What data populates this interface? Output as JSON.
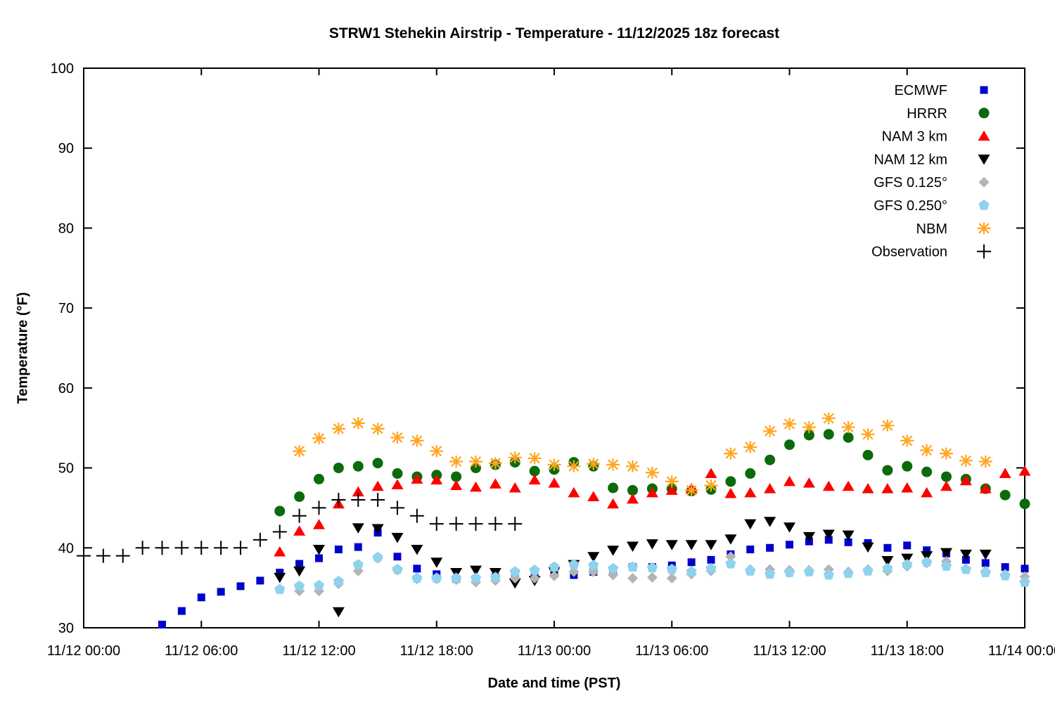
{
  "chart_data": {
    "type": "scatter",
    "title": "STRW1 Stehekin Airstrip - Temperature - 11/12/2025 18z forecast",
    "xlabel": "Date and time (PST)",
    "ylabel": "Temperature (°F)",
    "x_unit": "hours since 11/12 00:00 PST",
    "xlim_hours": [
      0,
      48
    ],
    "ylim": [
      30,
      100
    ],
    "grid": false,
    "legend_position": "top-right-inside",
    "x_ticks": [
      {
        "hour": 0,
        "label": "11/12 00:00"
      },
      {
        "hour": 6,
        "label": "11/12 06:00"
      },
      {
        "hour": 12,
        "label": "11/12 12:00"
      },
      {
        "hour": 18,
        "label": "11/12 18:00"
      },
      {
        "hour": 24,
        "label": "11/13 00:00"
      },
      {
        "hour": 30,
        "label": "11/13 06:00"
      },
      {
        "hour": 36,
        "label": "11/13 12:00"
      },
      {
        "hour": 42,
        "label": "11/13 18:00"
      },
      {
        "hour": 48,
        "label": "11/14 00:00"
      }
    ],
    "y_ticks": [
      30,
      40,
      50,
      60,
      70,
      80,
      90,
      100
    ],
    "series": [
      {
        "name": "ECMWF",
        "marker": "square",
        "color": "#0000cd",
        "points": [
          [
            4,
            30.4
          ],
          [
            5,
            32.1
          ],
          [
            6,
            33.8
          ],
          [
            7,
            34.5
          ],
          [
            8,
            35.2
          ],
          [
            9,
            35.9
          ],
          [
            10,
            36.9
          ],
          [
            11,
            38.0
          ],
          [
            12,
            38.7
          ],
          [
            13,
            39.8
          ],
          [
            14,
            40.1
          ],
          [
            15,
            41.9
          ],
          [
            16,
            38.9
          ],
          [
            17,
            37.4
          ],
          [
            18,
            36.7
          ],
          [
            19,
            36.1
          ],
          [
            20,
            36.1
          ],
          [
            21,
            36.3
          ],
          [
            22,
            36.5
          ],
          [
            23,
            36.7
          ],
          [
            24,
            36.9
          ],
          [
            25,
            36.6
          ],
          [
            26,
            37.0
          ],
          [
            27,
            37.1
          ],
          [
            28,
            37.6
          ],
          [
            29,
            37.6
          ],
          [
            30,
            37.8
          ],
          [
            31,
            38.2
          ],
          [
            32,
            38.5
          ],
          [
            33,
            39.2
          ],
          [
            34,
            39.8
          ],
          [
            35,
            40.0
          ],
          [
            36,
            40.4
          ],
          [
            37,
            40.8
          ],
          [
            38,
            41.0
          ],
          [
            39,
            40.7
          ],
          [
            40,
            40.6
          ],
          [
            41,
            40.0
          ],
          [
            42,
            40.3
          ],
          [
            43,
            39.7
          ],
          [
            44,
            39.3
          ],
          [
            45,
            38.5
          ],
          [
            46,
            38.1
          ],
          [
            47,
            37.6
          ],
          [
            48,
            37.4
          ]
        ]
      },
      {
        "name": "HRRR",
        "marker": "circle",
        "color": "#0b6b0b",
        "points": [
          [
            10,
            44.6
          ],
          [
            11,
            46.4
          ],
          [
            12,
            48.6
          ],
          [
            13,
            50.0
          ],
          [
            14,
            50.2
          ],
          [
            15,
            50.6
          ],
          [
            16,
            49.3
          ],
          [
            17,
            48.9
          ],
          [
            18,
            49.1
          ],
          [
            19,
            48.9
          ],
          [
            20,
            50.0
          ],
          [
            21,
            50.4
          ],
          [
            22,
            50.7
          ],
          [
            23,
            49.6
          ],
          [
            24,
            49.8
          ],
          [
            25,
            50.7
          ],
          [
            26,
            50.2
          ],
          [
            27,
            47.5
          ],
          [
            28,
            47.2
          ],
          [
            29,
            47.4
          ],
          [
            30,
            47.4
          ],
          [
            31,
            47.1
          ],
          [
            32,
            47.3
          ],
          [
            33,
            48.3
          ],
          [
            34,
            49.3
          ],
          [
            35,
            51.0
          ],
          [
            36,
            52.9
          ],
          [
            37,
            54.1
          ],
          [
            38,
            54.2
          ],
          [
            39,
            53.8
          ],
          [
            40,
            51.6
          ],
          [
            41,
            49.7
          ],
          [
            42,
            50.2
          ],
          [
            43,
            49.5
          ],
          [
            44,
            48.9
          ],
          [
            45,
            48.6
          ],
          [
            46,
            47.4
          ],
          [
            47,
            46.6
          ],
          [
            48,
            45.5
          ]
        ]
      },
      {
        "name": "NAM 3 km",
        "marker": "triangle-up",
        "color": "#fe0000",
        "points": [
          [
            10,
            39.5
          ],
          [
            11,
            42.1
          ],
          [
            12,
            42.9
          ],
          [
            13,
            45.5
          ],
          [
            14,
            47.0
          ],
          [
            15,
            47.7
          ],
          [
            16,
            47.9
          ],
          [
            17,
            48.6
          ],
          [
            18,
            48.5
          ],
          [
            19,
            47.8
          ],
          [
            20,
            47.6
          ],
          [
            21,
            48.0
          ],
          [
            22,
            47.5
          ],
          [
            23,
            48.5
          ],
          [
            24,
            48.1
          ],
          [
            25,
            46.9
          ],
          [
            26,
            46.4
          ],
          [
            27,
            45.5
          ],
          [
            28,
            46.1
          ],
          [
            29,
            46.9
          ],
          [
            30,
            47.2
          ],
          [
            31,
            47.4
          ],
          [
            32,
            49.3
          ],
          [
            33,
            46.8
          ],
          [
            34,
            46.9
          ],
          [
            35,
            47.4
          ],
          [
            36,
            48.3
          ],
          [
            37,
            48.1
          ],
          [
            38,
            47.7
          ],
          [
            39,
            47.7
          ],
          [
            40,
            47.4
          ],
          [
            41,
            47.4
          ],
          [
            42,
            47.5
          ],
          [
            43,
            46.9
          ],
          [
            44,
            47.7
          ],
          [
            45,
            48.4
          ],
          [
            46,
            47.4
          ],
          [
            47,
            49.3
          ],
          [
            48,
            49.6
          ]
        ]
      },
      {
        "name": "NAM 12 km",
        "marker": "triangle-down",
        "color": "#000000",
        "points": [
          [
            10,
            36.3
          ],
          [
            11,
            37.1
          ],
          [
            12,
            39.8
          ],
          [
            13,
            32.0
          ],
          [
            14,
            42.5
          ],
          [
            15,
            42.4
          ],
          [
            16,
            41.3
          ],
          [
            17,
            39.8
          ],
          [
            18,
            38.2
          ],
          [
            19,
            36.9
          ],
          [
            20,
            37.2
          ],
          [
            21,
            36.9
          ],
          [
            22,
            35.6
          ],
          [
            23,
            35.9
          ],
          [
            24,
            37.0
          ],
          [
            25,
            37.9
          ],
          [
            26,
            38.9
          ],
          [
            27,
            39.7
          ],
          [
            28,
            40.2
          ],
          [
            29,
            40.5
          ],
          [
            30,
            40.4
          ],
          [
            31,
            40.4
          ],
          [
            32,
            40.4
          ],
          [
            33,
            41.1
          ],
          [
            34,
            43.0
          ],
          [
            35,
            43.3
          ],
          [
            36,
            42.6
          ],
          [
            37,
            41.4
          ],
          [
            38,
            41.7
          ],
          [
            39,
            41.6
          ],
          [
            40,
            40.1
          ],
          [
            41,
            38.4
          ],
          [
            42,
            38.7
          ],
          [
            43,
            39.0
          ],
          [
            44,
            39.4
          ],
          [
            45,
            39.2
          ],
          [
            46,
            39.2
          ]
        ]
      },
      {
        "name": "GFS 0.125°",
        "marker": "diamond",
        "color": "#b4b4b4",
        "points": [
          [
            11,
            34.6
          ],
          [
            12,
            34.6
          ],
          [
            13,
            35.5
          ],
          [
            14,
            37.1
          ],
          [
            15,
            38.7
          ],
          [
            16,
            37.2
          ],
          [
            17,
            36.1
          ],
          [
            18,
            36.1
          ],
          [
            19,
            36.0
          ],
          [
            20,
            35.7
          ],
          [
            21,
            35.9
          ],
          [
            22,
            36.2
          ],
          [
            23,
            36.2
          ],
          [
            24,
            36.5
          ],
          [
            25,
            37.0
          ],
          [
            26,
            37.0
          ],
          [
            27,
            36.6
          ],
          [
            28,
            36.2
          ],
          [
            29,
            36.3
          ],
          [
            30,
            36.2
          ],
          [
            31,
            36.7
          ],
          [
            32,
            37.1
          ],
          [
            33,
            38.9
          ],
          [
            34,
            37.3
          ],
          [
            35,
            37.3
          ],
          [
            36,
            37.2
          ],
          [
            37,
            37.2
          ],
          [
            38,
            37.3
          ],
          [
            39,
            37.0
          ],
          [
            40,
            37.3
          ],
          [
            41,
            37.1
          ],
          [
            42,
            37.7
          ],
          [
            43,
            38.1
          ],
          [
            44,
            38.3
          ],
          [
            45,
            37.4
          ],
          [
            46,
            37.1
          ],
          [
            47,
            36.7
          ],
          [
            48,
            36.4
          ]
        ]
      },
      {
        "name": "GFS 0.250°",
        "marker": "pentagon",
        "color": "#8ed2ee",
        "points": [
          [
            10,
            34.8
          ],
          [
            11,
            35.2
          ],
          [
            12,
            35.3
          ],
          [
            13,
            35.8
          ],
          [
            14,
            37.9
          ],
          [
            15,
            38.8
          ],
          [
            16,
            37.3
          ],
          [
            17,
            36.2
          ],
          [
            18,
            36.2
          ],
          [
            19,
            36.2
          ],
          [
            20,
            36.2
          ],
          [
            21,
            36.3
          ],
          [
            22,
            37.0
          ],
          [
            23,
            37.2
          ],
          [
            24,
            37.6
          ],
          [
            25,
            37.9
          ],
          [
            26,
            37.8
          ],
          [
            27,
            37.4
          ],
          [
            28,
            37.6
          ],
          [
            29,
            37.5
          ],
          [
            30,
            37.3
          ],
          [
            31,
            37.0
          ],
          [
            32,
            37.4
          ],
          [
            33,
            38.0
          ],
          [
            34,
            37.1
          ],
          [
            35,
            36.7
          ],
          [
            36,
            36.9
          ],
          [
            37,
            37.0
          ],
          [
            38,
            36.6
          ],
          [
            39,
            36.8
          ],
          [
            40,
            37.1
          ],
          [
            41,
            37.4
          ],
          [
            42,
            37.9
          ],
          [
            43,
            38.2
          ],
          [
            44,
            37.7
          ],
          [
            45,
            37.3
          ],
          [
            46,
            36.9
          ],
          [
            47,
            36.5
          ],
          [
            48,
            35.7
          ]
        ]
      },
      {
        "name": "NBM",
        "marker": "asterisk",
        "color": "#ffa51e",
        "points": [
          [
            11,
            52.1
          ],
          [
            12,
            53.7
          ],
          [
            13,
            54.9
          ],
          [
            14,
            55.6
          ],
          [
            15,
            54.9
          ],
          [
            16,
            53.8
          ],
          [
            17,
            53.4
          ],
          [
            18,
            52.1
          ],
          [
            19,
            50.8
          ],
          [
            20,
            50.8
          ],
          [
            21,
            50.6
          ],
          [
            22,
            51.3
          ],
          [
            23,
            51.2
          ],
          [
            24,
            50.4
          ],
          [
            25,
            50.2
          ],
          [
            26,
            50.5
          ],
          [
            27,
            50.4
          ],
          [
            28,
            50.2
          ],
          [
            29,
            49.4
          ],
          [
            30,
            48.3
          ],
          [
            31,
            47.2
          ],
          [
            32,
            47.8
          ],
          [
            33,
            51.8
          ],
          [
            34,
            52.6
          ],
          [
            35,
            54.6
          ],
          [
            36,
            55.5
          ],
          [
            37,
            55.1
          ],
          [
            38,
            56.2
          ],
          [
            39,
            55.1
          ],
          [
            40,
            54.2
          ],
          [
            41,
            55.3
          ],
          [
            42,
            53.4
          ],
          [
            43,
            52.2
          ],
          [
            44,
            51.8
          ],
          [
            45,
            50.9
          ],
          [
            46,
            50.8
          ]
        ]
      },
      {
        "name": "Observation",
        "marker": "plus",
        "color": "#000000",
        "points": [
          [
            0,
            39
          ],
          [
            1,
            39
          ],
          [
            2,
            39
          ],
          [
            3,
            40
          ],
          [
            4,
            40
          ],
          [
            5,
            40
          ],
          [
            6,
            40
          ],
          [
            7,
            40
          ],
          [
            8,
            40
          ],
          [
            9,
            41
          ],
          [
            10,
            42
          ],
          [
            11,
            44
          ],
          [
            12,
            45
          ],
          [
            13,
            46
          ],
          [
            14,
            46
          ],
          [
            15,
            46
          ],
          [
            16,
            45
          ],
          [
            17,
            44
          ],
          [
            18,
            43
          ],
          [
            19,
            43
          ],
          [
            20,
            43
          ],
          [
            21,
            43
          ],
          [
            22,
            43
          ]
        ]
      }
    ]
  }
}
